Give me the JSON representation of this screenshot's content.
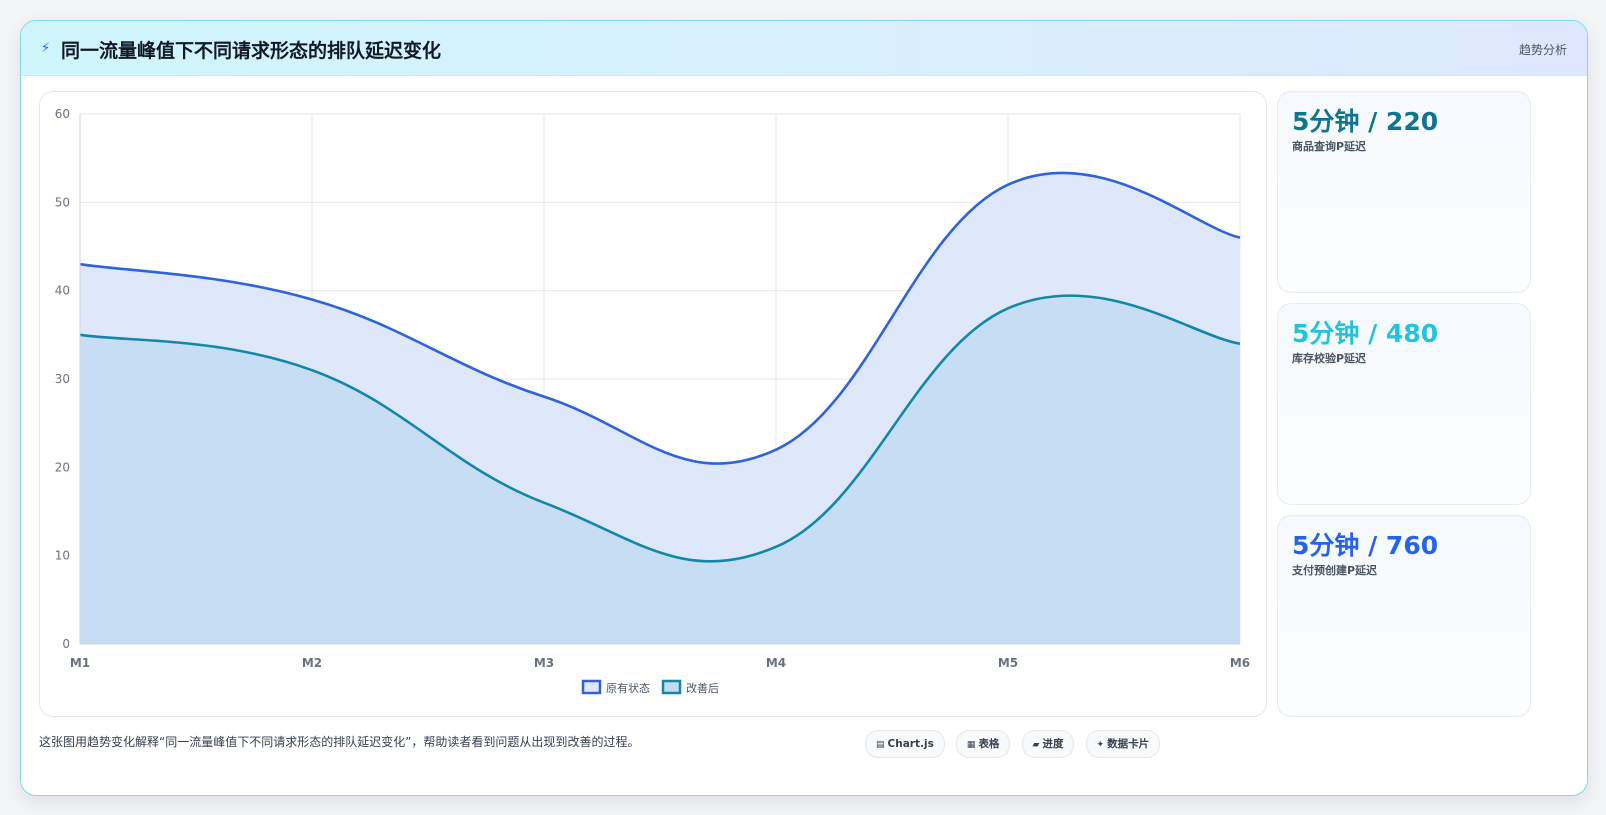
{
  "header": {
    "title": "同一流量峰值下不同请求形态的排队延迟变化",
    "tag": "趋势分析",
    "icon": "lightning-icon"
  },
  "chart_data": {
    "type": "area",
    "categories": [
      "M1",
      "M2",
      "M3",
      "M4",
      "M5",
      "M6"
    ],
    "ylim": [
      0,
      60
    ],
    "yticks": [
      0,
      10,
      20,
      30,
      40,
      50,
      60
    ],
    "grid": true,
    "legend_position": "bottom",
    "series": [
      {
        "name": "原有状态",
        "values": [
          43,
          39,
          28,
          22,
          52,
          46
        ],
        "color": "#2f63d9",
        "fill": "#dfe8fb"
      },
      {
        "name": "改善后",
        "values": [
          35,
          31,
          16,
          11,
          38,
          34
        ],
        "color": "#1287aa",
        "fill": "#c4dcf2"
      }
    ]
  },
  "stats": [
    {
      "value": "5分钟 / 220",
      "label": "商品查询P延迟",
      "color": "#0e7490"
    },
    {
      "value": "5分钟 / 480",
      "label": "库存校验P延迟",
      "color": "#22c3dd"
    },
    {
      "value": "5分钟 / 760",
      "label": "支付预创建P延迟",
      "color": "#2563eb"
    }
  ],
  "caption": "这张图用趋势变化解释“同一流量峰值下不同请求形态的排队延迟变化”，帮助读者看到问题从出现到改善的过程。",
  "chips": [
    {
      "icon": "chart-icon",
      "glyph": "▤",
      "label": "Chart.js"
    },
    {
      "icon": "table-icon",
      "glyph": "▦",
      "label": "表格"
    },
    {
      "icon": "progress-icon",
      "glyph": "▰",
      "label": "进度"
    },
    {
      "icon": "card-icon",
      "glyph": "✦",
      "label": "数据卡片"
    }
  ]
}
